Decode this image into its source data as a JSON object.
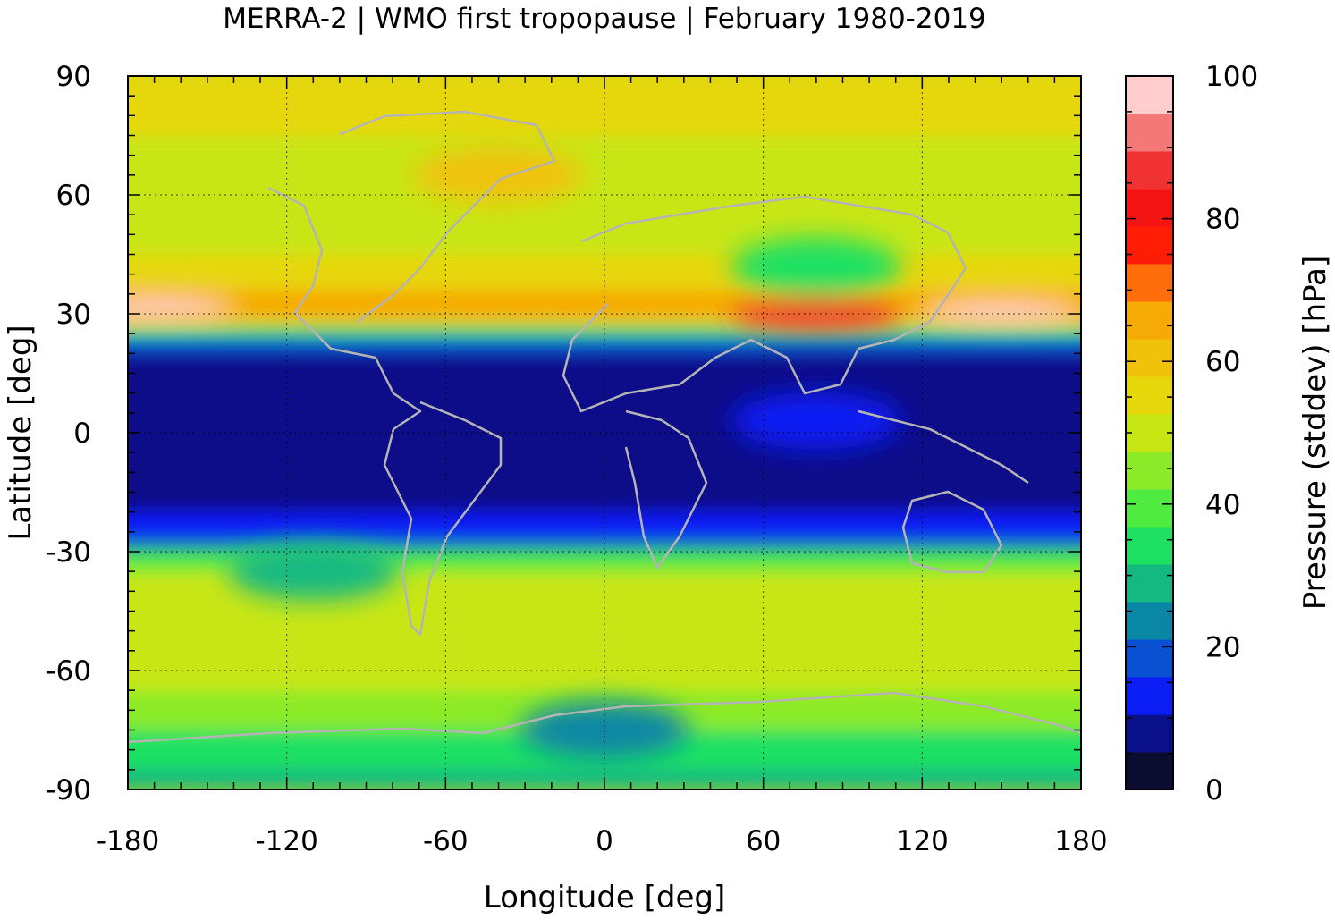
{
  "chart_data": {
    "type": "heatmap",
    "title": "MERRA-2 | WMO first tropopause | February 1980-2019",
    "xlabel": "Longitude [deg]",
    "ylabel": "Latitude [deg]",
    "colorbar_label": "Pressure (stddev) [hPa]",
    "xlim": [
      -180,
      180
    ],
    "ylim": [
      -90,
      90
    ],
    "x_ticks": [
      -180,
      -120,
      -60,
      0,
      60,
      120,
      180
    ],
    "y_ticks": [
      90,
      60,
      30,
      0,
      -30,
      -60,
      -90
    ],
    "x_tick_labels": [
      "-180",
      "-120",
      "-60",
      "0",
      "60",
      "120",
      "180"
    ],
    "y_tick_labels": [
      "90",
      "60",
      "30",
      "0",
      "-30",
      "-60",
      "-90"
    ],
    "colorbar_range": [
      0,
      100
    ],
    "colorbar_ticks": [
      0,
      20,
      40,
      60,
      80,
      100
    ],
    "colorbar_tick_labels": [
      "0",
      "20",
      "40",
      "60",
      "80",
      "100"
    ],
    "grid": true,
    "colorbar_colors": [
      "#0c0c30",
      "#0a0f8a",
      "#0a1ef5",
      "#0a50d2",
      "#0a87a5",
      "#14b982",
      "#1ee164",
      "#50eb41",
      "#8ceb28",
      "#c8e614",
      "#e6d70a",
      "#f0c30a",
      "#f5aa05",
      "#ff6e0a",
      "#ff1e05",
      "#f51414",
      "#f03232",
      "#f57878",
      "#ffcdcd"
    ],
    "zonal_profile": [
      {
        "lat": 90,
        "value": 55
      },
      {
        "lat": 75,
        "value": 52
      },
      {
        "lat": 60,
        "value": 50
      },
      {
        "lat": 45,
        "value": 46
      },
      {
        "lat": 36,
        "value": 60
      },
      {
        "lat": 30,
        "value": 72
      },
      {
        "lat": 27,
        "value": 45
      },
      {
        "lat": 24,
        "value": 22
      },
      {
        "lat": 20,
        "value": 12
      },
      {
        "lat": 10,
        "value": 6
      },
      {
        "lat": 0,
        "value": 6
      },
      {
        "lat": -10,
        "value": 7
      },
      {
        "lat": -20,
        "value": 10
      },
      {
        "lat": -27,
        "value": 15
      },
      {
        "lat": -30,
        "value": 30
      },
      {
        "lat": -35,
        "value": 45
      },
      {
        "lat": -45,
        "value": 50
      },
      {
        "lat": -55,
        "value": 54
      },
      {
        "lat": -65,
        "value": 48
      },
      {
        "lat": -75,
        "value": 38
      },
      {
        "lat": -85,
        "value": 30
      },
      {
        "lat": -90,
        "value": 28
      }
    ],
    "features": [
      {
        "lon": -170,
        "lat": 32,
        "value": 95
      },
      {
        "lon": 150,
        "lat": 31,
        "value": 95
      },
      {
        "lon": 80,
        "lat": 30,
        "value": 85
      },
      {
        "lon": -40,
        "lat": 65,
        "value": 62
      },
      {
        "lon": 80,
        "lat": 42,
        "value": 35
      },
      {
        "lon": -110,
        "lat": -35,
        "value": 30
      },
      {
        "lon": 80,
        "lat": 3,
        "value": 14
      },
      {
        "lon": 0,
        "lat": -75,
        "value": 25
      }
    ]
  }
}
